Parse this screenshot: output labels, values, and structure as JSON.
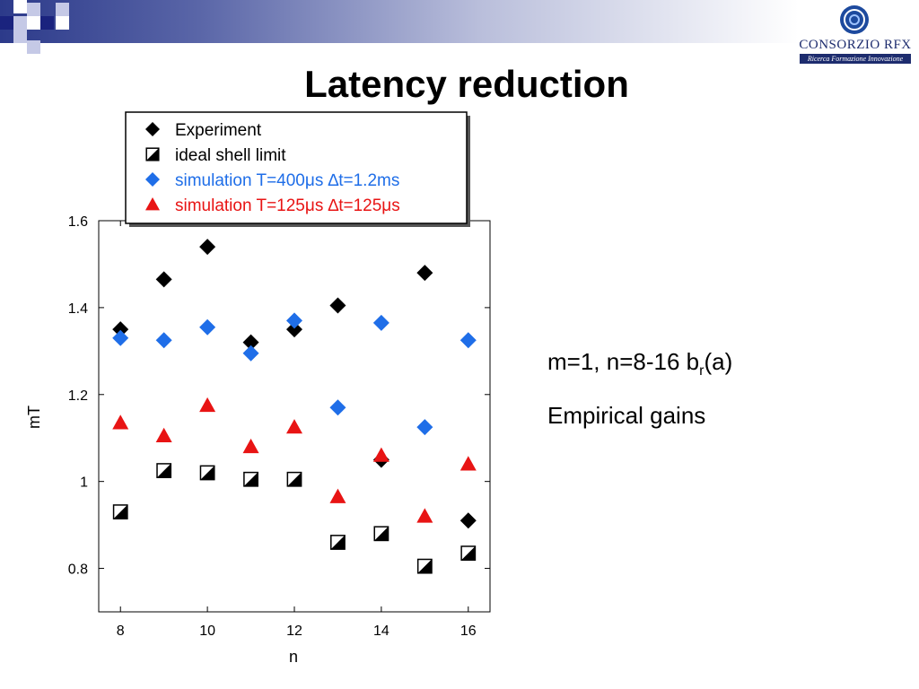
{
  "slide": {
    "title": "Latency reduction",
    "note_1_main": "m=1, n=8-16  b",
    "note_1_sub": "r",
    "note_1_end": "(a)",
    "note_2": "Empirical gains"
  },
  "logo": {
    "name": "CONSORZIO RFX",
    "tagline": "Ricerca Formazione Innovazione",
    "icon": "rfx-emblem-icon"
  },
  "colors": {
    "experiment": "#000000",
    "ideal": "#000000",
    "sim400": "#1f6ee8",
    "sim125": "#e81414"
  },
  "chart_data": {
    "type": "scatter",
    "xlabel": "n",
    "ylabel": "mT",
    "xlim": [
      7.5,
      16.5
    ],
    "ylim": [
      0.7,
      1.6
    ],
    "xticks": [
      "8",
      "10",
      "12",
      "14",
      "16"
    ],
    "yticks": [
      "0.8",
      "1",
      "1.2",
      "1.4",
      "1.6"
    ],
    "grid": false,
    "legend_placement": "top-left",
    "series": [
      {
        "name": "Experiment",
        "marker": "diamond",
        "x": [
          8,
          9,
          10,
          11,
          12,
          13,
          14,
          15,
          16
        ],
        "y": [
          1.35,
          1.465,
          1.54,
          1.32,
          1.35,
          1.405,
          1.05,
          1.48,
          0.91
        ]
      },
      {
        "name": "ideal shell limit",
        "marker": "half-square",
        "x": [
          8,
          9,
          10,
          11,
          12,
          13,
          14,
          15,
          16
        ],
        "y": [
          0.93,
          1.025,
          1.02,
          1.005,
          1.005,
          0.86,
          0.88,
          0.805,
          0.835
        ]
      },
      {
        "name": "simulation T=400μs ∆t=1.2ms",
        "marker": "diamond",
        "x": [
          8,
          9,
          10,
          11,
          12,
          13,
          14,
          15,
          16
        ],
        "y": [
          1.33,
          1.325,
          1.355,
          1.295,
          1.37,
          1.17,
          1.365,
          1.125,
          1.325
        ]
      },
      {
        "name": "simulation T=125μs ∆t=125μs",
        "marker": "triangle",
        "x": [
          8,
          9,
          10,
          11,
          12,
          13,
          14,
          15,
          16
        ],
        "y": [
          1.135,
          1.105,
          1.175,
          1.08,
          1.125,
          0.965,
          1.06,
          0.92,
          1.04
        ]
      }
    ]
  }
}
